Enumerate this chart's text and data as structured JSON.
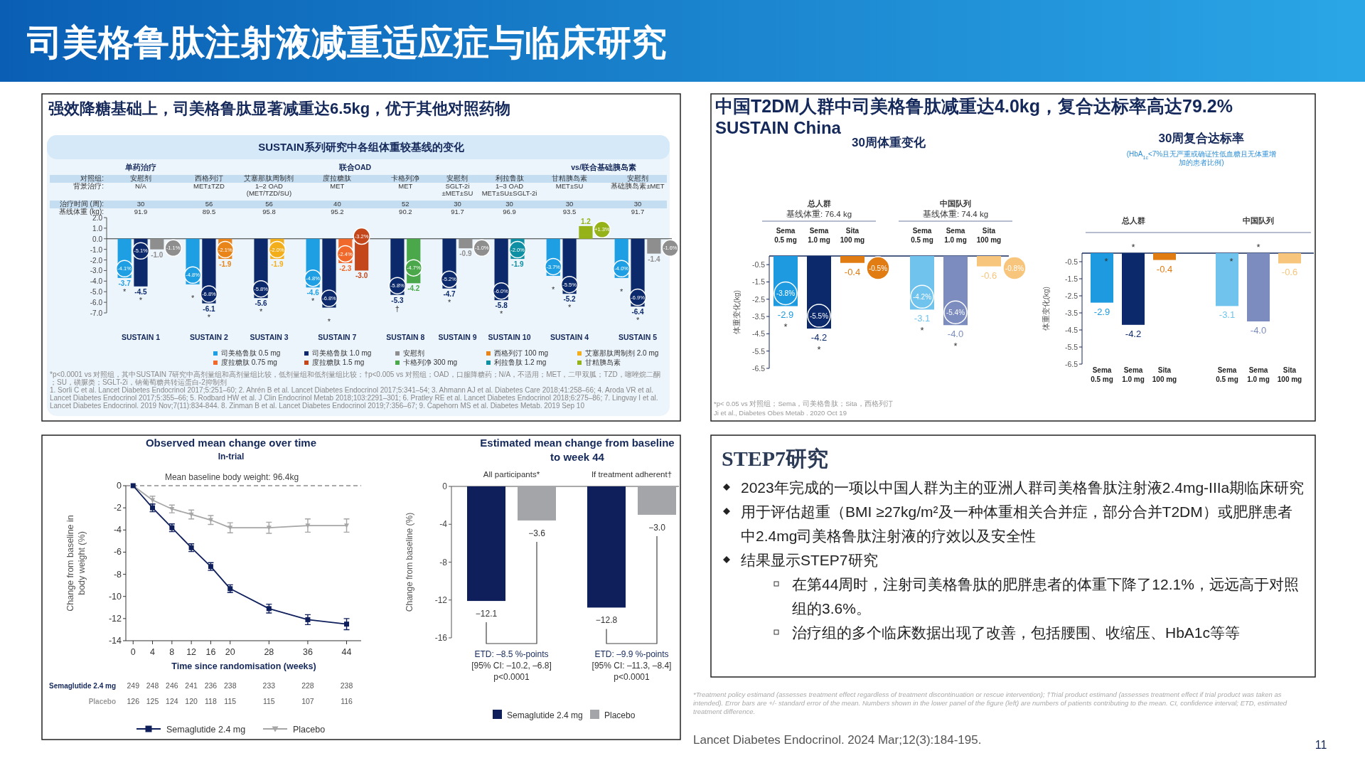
{
  "chart_data": [
    {
      "type": "other",
      "title": "司美格鲁肽注射液减重适应症与临床研究",
      "annotations": [
        "11"
      ]
    },
    {
      "type": "bar",
      "title": "强效降糖基础上，司美格鲁肽显著减重达6.5kg，优于其他对照药物",
      "subtitle": "SUSTAIN系列研究中各组体重较基线的变化",
      "categories": [
        "SUSTAIN 1",
        "SUSTAIN 2",
        "SUSTAIN 3",
        "SUSTAIN 7",
        "SUSTAIN 8",
        "SUSTAIN 9",
        "SUSTAIN 10",
        "SUSTAIN 4",
        "SUSTAIN 5"
      ],
      "series": [
        {
          "name": "司美格鲁肽 0.5 mg",
          "color": "#1e9fe3",
          "values": [
            -3.7,
            -4.3,
            null,
            -4.6,
            null,
            null,
            null,
            -3.5,
            -3.7
          ],
          "value_labels": [
            "-3.7",
            null,
            null,
            "-4.6",
            null,
            null,
            null,
            null,
            null
          ]
        },
        {
          "name": "司美格鲁肽 1.0 mg",
          "color": "#0c2a6b",
          "values": [
            -4.5,
            -6.1,
            -5.6,
            -6.5,
            -5.3,
            -4.7,
            -5.8,
            -5.2,
            -6.4
          ],
          "value_labels": [
            "-4.5",
            "-6.1",
            "-5.6",
            null,
            "-5.3",
            "-4.7",
            "-5.8",
            "-5.2",
            "-6.4"
          ]
        },
        {
          "name": "安慰剂",
          "color": "#8e8e8e",
          "values": [
            -1.0,
            null,
            null,
            null,
            null,
            -0.9,
            null,
            null,
            -1.4
          ],
          "value_labels": [
            "-1.0",
            null,
            null,
            null,
            null,
            "-0.9",
            null,
            null,
            "-1.4"
          ]
        },
        {
          "name": "西格列汀 100 mg",
          "color": "#e8841a",
          "values": [
            null,
            -1.9,
            null,
            null,
            null,
            null,
            null,
            null,
            null
          ],
          "value_labels": [
            null,
            "-1.9",
            null,
            null,
            null,
            null,
            null,
            null,
            null
          ]
        },
        {
          "name": "艾塞那肽周制剂 2.0 mg",
          "color": "#f3ae1b",
          "values": [
            null,
            null,
            -1.9,
            null,
            null,
            null,
            null,
            null,
            null
          ],
          "value_labels": [
            null,
            null,
            "-1.9",
            null,
            null,
            null,
            null,
            null,
            null
          ]
        },
        {
          "name": "度拉糖肽 0.75 mg",
          "color": "#f0682a",
          "values": [
            null,
            null,
            null,
            -2.3,
            null,
            null,
            null,
            null,
            null
          ],
          "value_labels": [
            null,
            null,
            null,
            "-2.3",
            null,
            null,
            null,
            null,
            null
          ]
        },
        {
          "name": "度拉糖肽 1.5 mg",
          "color": "#c4471b",
          "values": [
            null,
            null,
            null,
            -3.0,
            null,
            null,
            null,
            null,
            null
          ],
          "value_labels": [
            null,
            null,
            null,
            "-3.0",
            null,
            null,
            null,
            null,
            null
          ]
        },
        {
          "name": "卡格列净 300 mg",
          "color": "#4aa84a",
          "values": [
            null,
            null,
            null,
            null,
            -4.2,
            null,
            null,
            null,
            null
          ],
          "value_labels": [
            null,
            null,
            null,
            null,
            "-4.2",
            null,
            null,
            null,
            null
          ]
        },
        {
          "name": "利拉鲁肽 1.2 mg",
          "color": "#0e8fa3",
          "values": [
            null,
            null,
            null,
            null,
            null,
            null,
            -1.9,
            null,
            null
          ],
          "value_labels": [
            null,
            null,
            null,
            null,
            null,
            null,
            "-1.9",
            null,
            null
          ]
        },
        {
          "name": "甘精胰岛素",
          "color": "#96b219",
          "values": [
            null,
            null,
            null,
            null,
            null,
            null,
            null,
            1.2,
            null
          ],
          "value_labels": [
            null,
            null,
            null,
            null,
            null,
            null,
            null,
            "1.2",
            null
          ]
        }
      ],
      "ylim": [
        -7,
        2
      ],
      "yticks": [
        {
          "value": 2,
          "label": "2.0"
        },
        {
          "value": 1,
          "label": "1.0"
        },
        {
          "value": 0,
          "label": "0.0"
        },
        {
          "value": -1,
          "label": "-1.0"
        },
        {
          "value": -2,
          "label": "-2.0"
        },
        {
          "value": -3,
          "label": "-3.0"
        },
        {
          "value": -4,
          "label": "-4.0"
        },
        {
          "value": -5,
          "label": "-5.0"
        },
        {
          "value": -6,
          "label": "-6.0"
        },
        {
          "value": -7,
          "label": "-7.0"
        }
      ],
      "legend": "bottom",
      "annotations": [
        "单药治疗",
        "联合OAD",
        "vs/联合基础胰岛素",
        "对照组:",
        "背景治疗:",
        "治疗时间 (周):",
        "基线体重 (kg):",
        "安慰剂",
        "N/A",
        "30",
        "91.9",
        "西格列汀",
        "MET±TZD",
        "56",
        "89.5",
        "艾塞那肽周制剂",
        "1–2 OAD (MET/TZD/SU)",
        "56",
        "95.8",
        "度拉糖肽",
        "MET",
        "40",
        "95.2",
        "卡格列净",
        "MET",
        "52",
        "90.2",
        "安慰剂",
        "SGLT-2i ±MET±SU",
        "30",
        "91.7",
        "利拉鲁肽",
        "1–3 OAD MET±SU±SGLT-2i",
        "30",
        "96.9",
        "甘精胰岛素",
        "MET±SU",
        "30",
        "93.5",
        "安慰剂",
        "基础胰岛素±MET",
        "30",
        "91.7",
        "*p<0.0001 vs 对照组，其中SUSTAIN 7研究中高剂量组和高剂量组比较，低剂量组和低剂量组比较；†p<0.005 vs 对照组；OAD，口服降糖药；N/A，不适用；MET，二甲双胍；TZD，噻唑烷二酮；SU，磺脲类；SGLT-2i，钠葡萄糖共转运蛋白-2抑制剂",
        "1. Sorli C et al. Lancet Diabetes Endocrinol 2017;5:251–60; 2. Ahrén B et al. Lancet Diabetes Endocrinol 2017;5:341–54; 3. Ahmann AJ et al. Diabetes Care 2018;41:258–66; 4. Aroda VR et al. Lancet Diabetes Endocrinol 2017;5:355–66; 5. Rodbard HW et al. J Clin Endocrinol Metab 2018;103:2291–301; 6. Pratley RE et al. Lancet Diabetes Endocrinol 2018;6:275–86; 7. Lingvay I et al. Lancet Diabetes Endocrinol. 2019 Nov;7(11):834-844. 8. Zinman B et al. Lancet Diabetes Endocrinol 2019;7:356–67; 9. Capehorn MS et al. Diabetes Metab. 2019 Sep 10",
        "-4.1%",
        "-5.1%",
        "-1.1%",
        "-4.8%",
        "-6.8%",
        "-2.1%",
        "-5.8%",
        "-2.0%",
        "-4.8%",
        "-6.8%",
        "-2.4%",
        "-3.2%",
        "-5.8%",
        "-4.7%",
        "-5.2%",
        "-1.0%",
        "-6.0%",
        "-2.0%",
        "-3.7%",
        "-5.5%",
        "+1.3%",
        "-4.0%",
        "-6.9%",
        "-1.6%",
        "*",
        "*",
        "*",
        "*",
        "*",
        "*",
        "*",
        "†",
        "*",
        "*",
        "*",
        "*",
        "*",
        "*"
      ]
    },
    {
      "type": "other",
      "title": "中国T2DM人群中司美格鲁肽减重达4.0kg，复合达标率高达79.2%",
      "subtitle": "SUSTAIN China",
      "annotations": [
        "*p< 0.05 vs 对照组；Sema，司美格鲁肽；Sita，西格列汀",
        "Ji et al., Diabetes Obes Metab . 2020 Oct 19"
      ]
    },
    {
      "type": "bar",
      "title": "30周体重变化",
      "ylabel": "体重变化(kg)",
      "categories": [
        "Sema 0.5 mg",
        "Sema 1.0 mg",
        "Sita 100 mg",
        "Sema 0.5 mg",
        "Sema 1.0 mg",
        "Sita 100 mg"
      ],
      "values": [
        -2.9,
        -4.2,
        -0.4,
        -3.1,
        -4.0,
        -0.6
      ],
      "value_labels": [
        "-2.9",
        "-4.2",
        "-0.4",
        "-3.1",
        "-4.0",
        "-0.6"
      ],
      "colors": [
        "#1e9be0",
        "#0c2a6b",
        "#e07c12",
        "#6fc3ec",
        "#7c8cbf",
        "#f7c57c"
      ],
      "ylim": [
        -6.5,
        0
      ],
      "yticks": [
        -0.5,
        -1.5,
        -2.5,
        -3.5,
        -4.5,
        -5.5,
        -6.5
      ],
      "annotations": [
        "总人群",
        "基线体重: 76.4 kg",
        "中国队列",
        "基线体重: 74.4 kg",
        "-3.8%",
        "-5.5%",
        "-0.5%",
        "-4.2%",
        "-5.4%",
        "-0.8%",
        "*",
        "*",
        "*",
        "*"
      ]
    },
    {
      "type": "bar",
      "title": "30周复合达标率",
      "subtitle": "(HbA$_{1c}$<7%且无严重或确证性低血糖且无体重增加的患者比例)",
      "ylabel": "体重变化(kg)",
      "categories": [
        "Sema 0.5 mg",
        "Sema 1.0 mg",
        "Sita 100 mg",
        "Sema 0.5 mg",
        "Sema 1.0 mg",
        "Sita 100 mg"
      ],
      "values": [
        -2.9,
        -4.2,
        -0.4,
        -3.1,
        -4.0,
        -0.6
      ],
      "value_labels": [
        "-2.9",
        "-4.2",
        "-0.4",
        "-3.1",
        "-4.0",
        "-0.6"
      ],
      "colors": [
        "#1e9be0",
        "#0c2a6b",
        "#e07c12",
        "#6fc3ec",
        "#7c8cbf",
        "#f7c57c"
      ],
      "ylim": [
        -6.5,
        0
      ],
      "yticks": [
        -0.5,
        -1.5,
        -2.5,
        -3.5,
        -4.5,
        -5.5,
        -6.5
      ],
      "annotations": [
        "总人群",
        "中国队列",
        "*",
        "*",
        "*",
        "*"
      ]
    },
    {
      "type": "line",
      "title": "Observed mean change over time",
      "subtitle": "In-trial",
      "xlabel": "Time since randomisation (weeks)",
      "ylabel": "Change from baseline in body weight (%)",
      "x": [
        0,
        4,
        8,
        12,
        16,
        20,
        28,
        36,
        44
      ],
      "series": [
        {
          "name": "Semaglutide 2.4 mg",
          "color": "#0f1f5c",
          "marker": "square",
          "values": [
            0,
            -2.0,
            -3.8,
            -5.6,
            -7.3,
            -9.3,
            -11.1,
            -12.1,
            -12.5
          ],
          "errors": [
            null,
            0.35,
            0.35,
            0.35,
            0.35,
            0.35,
            0.4,
            0.45,
            0.5
          ]
        },
        {
          "name": "Placebo",
          "color": "#a6a6a6",
          "marker": "triangle",
          "values": [
            0,
            -1.3,
            -2.1,
            -2.6,
            -3.1,
            -3.8,
            -3.8,
            -3.6,
            -3.6
          ],
          "errors": [
            null,
            0.35,
            0.35,
            0.4,
            0.4,
            0.45,
            0.5,
            0.6,
            0.6
          ]
        }
      ],
      "xlim": [
        -1.5,
        47
      ],
      "xticks": [
        0,
        4,
        8,
        12,
        16,
        20,
        28,
        36,
        44
      ],
      "ylim": [
        -14,
        0
      ],
      "yticks": [
        0,
        -2,
        -4,
        -6,
        -8,
        -10,
        -12,
        -14
      ],
      "ref_lines": [
        {
          "axis": "y",
          "value": 0,
          "color": "#555555",
          "line_style": "dashed"
        }
      ],
      "legend": "bottom",
      "annotations": [
        "Mean baseline body weight: 96.4kg",
        "Semaglutide 2.4 mg",
        "249",
        "248",
        "246",
        "241",
        "236",
        "238",
        "233",
        "228",
        "238",
        "Placebo",
        "126",
        "125",
        "124",
        "120",
        "118",
        "115",
        "115",
        "107",
        "116"
      ]
    },
    {
      "type": "bar",
      "title": "Estimated mean change from baseline to week 44",
      "ylabel": "Change from baseline (%)",
      "categories": [
        "All participants*",
        "If treatment adherent†"
      ],
      "series": [
        {
          "name": "Semaglutide 2.4 mg",
          "color": "#0f1f5c",
          "values": [
            -12.1,
            -12.8
          ],
          "value_labels": [
            "−12.1",
            "−12.8"
          ]
        },
        {
          "name": "Placebo",
          "color": "#a3a5a9",
          "values": [
            -3.6,
            -3.0
          ],
          "value_labels": [
            "−3.6",
            "−3.0"
          ]
        }
      ],
      "ylim": [
        -16,
        0
      ],
      "yticks": [
        0,
        -4,
        -8,
        -12,
        -16
      ],
      "legend": "bottom",
      "annotations": [
        "ETD: –8.5 %-points",
        "[95% CI: –10.2, –6.8]",
        "p<0.0001",
        "ETD: –9.9 %-points",
        "[95% CI: –11.3, –8.4]",
        "p<0.0001"
      ]
    },
    {
      "type": "other",
      "title": "STEP7研究",
      "annotations": [
        "2023年完成的一项以中国人群为主的亚洲人群司美格鲁肽注射液2.4mg-IIIa期临床研究",
        "用于评估超重（BMI ≥27kg/m²及一种体重相关合并症，部分合并T2DM）或肥胖患者中2.4mg司美格鲁肽注射液的疗效以及安全性",
        "结果显示STEP7研究",
        "在第44周时，注射司美格鲁肽的肥胖患者的体重下降了12.1%，远远高于对照组的3.6%。",
        "治疗组的多个临床数据出现了改善，包括腰围、收缩压、HbA1c等等",
        "*Treatment policy estimand (assesses treatment effect regardless of treatment discontinuation or rescue intervention); †Trial product estimand (assesses treatment effect if trial product was taken as intended). Error bars are +/- standard error of the mean. Numbers shown in the lower panel of the figure (left) are numbers of patients contributing to the mean. CI, confidence interval; ETD, estimated treatment difference.",
        "Lancet Diabetes Endocrinol. 2024 Mar;12(3):184-195."
      ]
    }
  ]
}
